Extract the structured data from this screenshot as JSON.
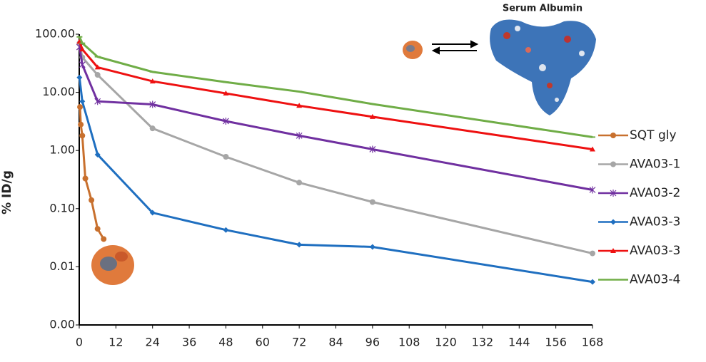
{
  "chart_data": {
    "type": "line",
    "annotation": "Serum Albumin",
    "ylabel": "% ID/g",
    "log_y": true,
    "xlim": [
      0,
      168
    ],
    "xticks": [
      0,
      12,
      24,
      36,
      48,
      60,
      72,
      84,
      96,
      108,
      120,
      132,
      144,
      156,
      168
    ],
    "ylim": [
      0.001,
      100
    ],
    "yticks": [
      {
        "value": 0.001,
        "label": "0.00"
      },
      {
        "value": 0.01,
        "label": "0.01"
      },
      {
        "value": 0.1,
        "label": "0.10"
      },
      {
        "value": 1,
        "label": "1.00"
      },
      {
        "value": 10,
        "label": "10.00"
      },
      {
        "value": 100,
        "label": "100.00"
      }
    ],
    "legend": "right",
    "series": [
      {
        "name": "SQT gly",
        "color": "#c8702e",
        "marker": "circle",
        "x": [
          0.25,
          0.5,
          1,
          2,
          4,
          6,
          8
        ],
        "values": [
          5.6,
          2.8,
          1.8,
          0.33,
          0.14,
          0.045,
          0.03
        ]
      },
      {
        "name": "AVA03-1",
        "color": "#a6a6a6",
        "marker": "circle",
        "x": [
          0.083,
          1,
          6,
          24,
          48,
          72,
          96,
          168
        ],
        "values": [
          70,
          40,
          20,
          2.4,
          0.78,
          0.28,
          0.13,
          0.017
        ]
      },
      {
        "name": "AVA03-2",
        "color": "#7030a0",
        "marker": "star",
        "x": [
          0.083,
          1,
          6,
          24,
          48,
          72,
          96,
          168
        ],
        "values": [
          60,
          30,
          7,
          6.2,
          3.2,
          1.8,
          1.05,
          0.21
        ]
      },
      {
        "name": "AVA03-3",
        "color": "#1f6fc0",
        "marker": "diamond",
        "x": [
          0.083,
          1,
          6,
          24,
          48,
          72,
          96,
          168
        ],
        "values": [
          18,
          7,
          0.85,
          0.085,
          0.043,
          0.024,
          0.022,
          0.0055
        ]
      },
      {
        "name": "AVA03-3",
        "color": "#ee1111",
        "marker": "triangle",
        "x": [
          0.083,
          1,
          6,
          24,
          48,
          72,
          96,
          168
        ],
        "values": [
          75,
          55,
          27,
          15.5,
          9.6,
          5.9,
          3.8,
          1.05
        ]
      },
      {
        "name": "AVA03-4",
        "color": "#70ad47",
        "marker": "dash",
        "x": [
          0.083,
          1,
          6,
          24,
          48,
          72,
          96,
          168
        ],
        "values": [
          90,
          70,
          41,
          22.5,
          15,
          10.3,
          6.3,
          1.7
        ]
      }
    ]
  }
}
